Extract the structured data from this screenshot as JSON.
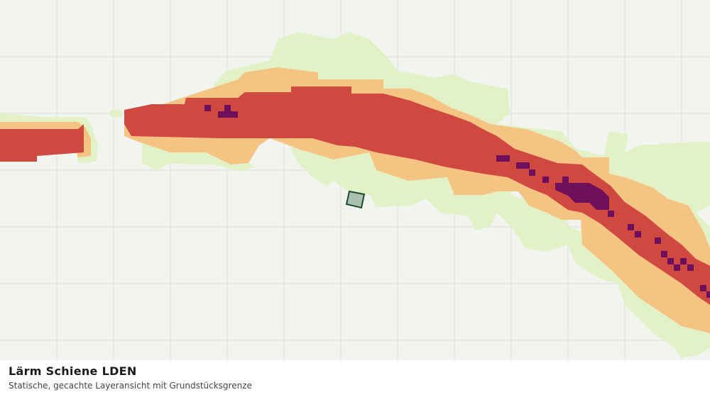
{
  "title": "Lärm Schiene LDEN",
  "subtitle": "Statische, gecachte Layeransicht mit Grundstücksgrenze"
}
